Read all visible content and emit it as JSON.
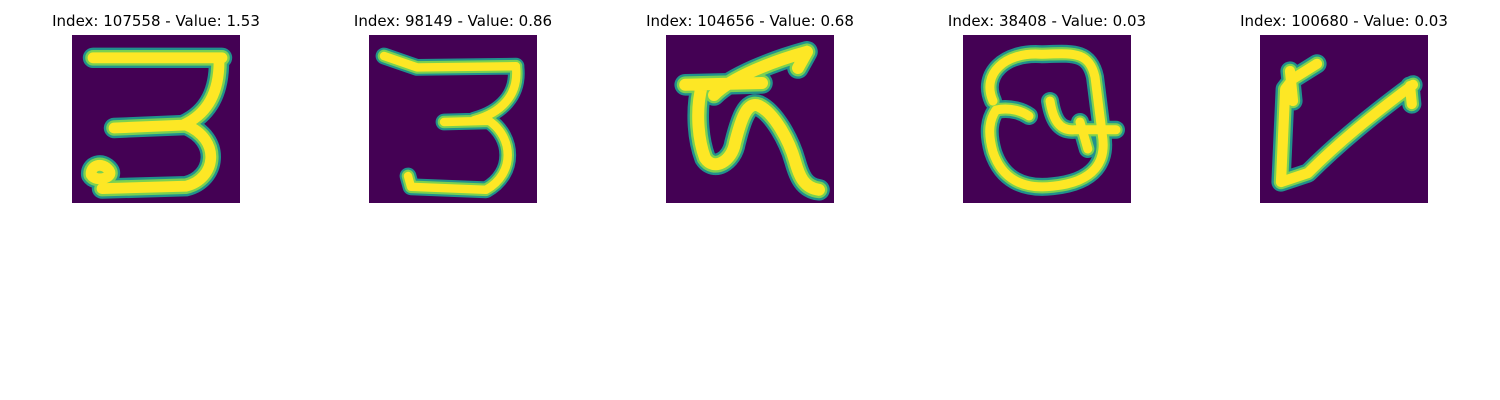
{
  "colors": {
    "background": "#440154",
    "stroke_outer": "#21918c",
    "stroke_mid": "#7ad151",
    "stroke_core": "#fde725"
  },
  "panels": [
    {
      "title": "Index: 107558 - Value: 1.53",
      "glyph": "digit-3"
    },
    {
      "title": "Index: 98149 - Value: 0.86",
      "glyph": "digit-3"
    },
    {
      "title": "Index: 104656 - Value: 0.68",
      "glyph": "character-scribble"
    },
    {
      "title": "Index: 38408 - Value: 0.03",
      "glyph": "character-loop"
    },
    {
      "title": "Index: 100680 - Value: 0.03",
      "glyph": "character-v"
    }
  ]
}
